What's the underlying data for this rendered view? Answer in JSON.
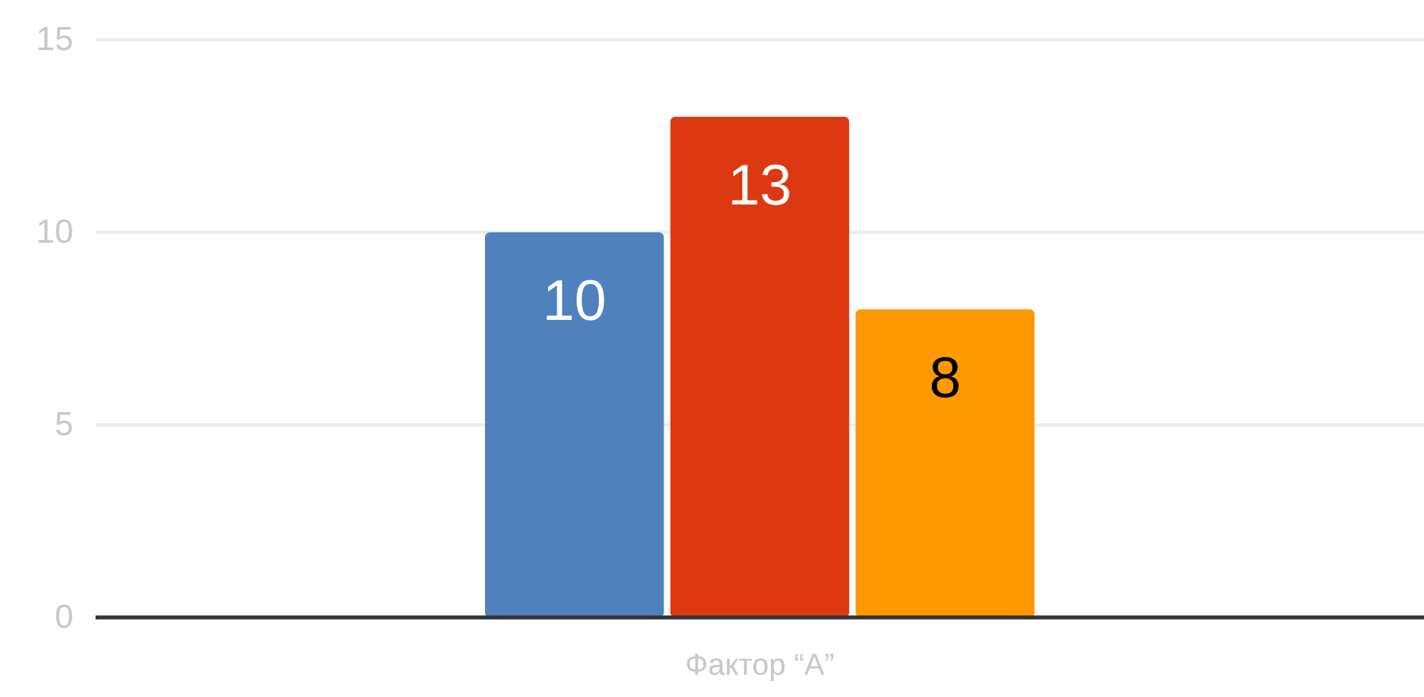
{
  "chart_data": {
    "type": "bar",
    "categories": [
      "Фактор “A”"
    ],
    "series": [
      {
        "color": "#4f81bd",
        "values": [
          10
        ]
      },
      {
        "color": "#dc3912",
        "values": [
          13
        ]
      },
      {
        "color": "#ff9900",
        "values": [
          8
        ]
      }
    ],
    "ylim": [
      0,
      15
    ],
    "yticks": [
      0,
      5,
      10,
      15
    ],
    "grid": "y",
    "data_labels": true
  }
}
